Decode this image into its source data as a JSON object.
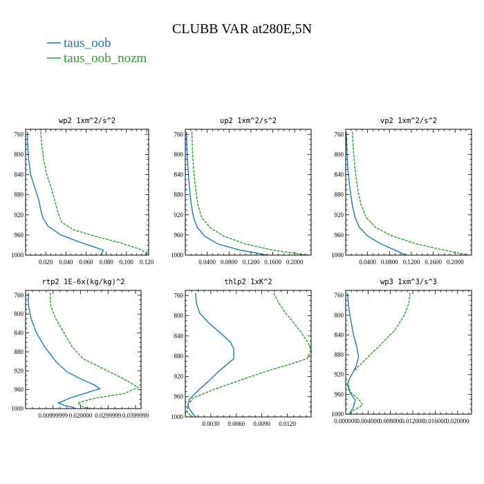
{
  "figure": {
    "title": "CLUBB VAR at280E,5N",
    "legend": [
      {
        "name": "taus_oob",
        "color": "#1f77b4",
        "dash": "none"
      },
      {
        "name": "taus_oob_nozm",
        "color": "#2ca02c",
        "dash": "4,1.5"
      }
    ]
  },
  "chart_data": [
    {
      "type": "line",
      "title": "wp2   1xm^2/s^2",
      "ylim": [
        1000,
        750
      ],
      "xlim": [
        0,
        0.122
      ],
      "yticks": [
        760,
        800,
        840,
        880,
        920,
        960,
        1000
      ],
      "xticks": [
        0.02,
        0.04,
        0.06,
        0.08,
        0.1,
        0.12
      ],
      "xticklabels": [
        "0.020",
        "0.040",
        "0.060",
        "0.080",
        "0.100",
        "0.120"
      ],
      "series": [
        {
          "name": "taus_oob",
          "points": [
            [
              0.002,
              755
            ],
            [
              0.002,
              780
            ],
            [
              0.003,
              810
            ],
            [
              0.005,
              840
            ],
            [
              0.009,
              865
            ],
            [
              0.013,
              890
            ],
            [
              0.015,
              910
            ],
            [
              0.017,
              925
            ],
            [
              0.022,
              942
            ],
            [
              0.035,
              960
            ],
            [
              0.055,
              975
            ],
            [
              0.077,
              990
            ],
            [
              0.075,
              1000
            ]
          ]
        },
        {
          "name": "taus_oob_nozm",
          "points": [
            [
              0.015,
              755
            ],
            [
              0.016,
              780
            ],
            [
              0.018,
              810
            ],
            [
              0.021,
              840
            ],
            [
              0.026,
              870
            ],
            [
              0.03,
              900
            ],
            [
              0.033,
              920
            ],
            [
              0.036,
              935
            ],
            [
              0.048,
              950
            ],
            [
              0.068,
              962
            ],
            [
              0.093,
              975
            ],
            [
              0.113,
              988
            ],
            [
              0.121,
              997
            ],
            [
              0.118,
              1000
            ]
          ]
        }
      ]
    },
    {
      "type": "line",
      "title": "up2   1xm^2/s^2",
      "ylim": [
        1000,
        750
      ],
      "xlim": [
        0,
        0.23
      ],
      "yticks": [
        760,
        800,
        840,
        880,
        920,
        960,
        1000
      ],
      "xticks": [
        0.04,
        0.08,
        0.12,
        0.16,
        0.2
      ],
      "xticklabels": [
        "0.0400",
        "0.0800",
        "0.1200",
        "0.1600",
        "0.2000"
      ],
      "series": [
        {
          "name": "taus_oob",
          "points": [
            [
              0.002,
              755
            ],
            [
              0.003,
              790
            ],
            [
              0.005,
              830
            ],
            [
              0.008,
              870
            ],
            [
              0.011,
              900
            ],
            [
              0.015,
              925
            ],
            [
              0.022,
              945
            ],
            [
              0.035,
              962
            ],
            [
              0.06,
              978
            ],
            [
              0.1,
              990
            ],
            [
              0.14,
              998
            ],
            [
              0.15,
              1000
            ]
          ]
        },
        {
          "name": "taus_oob_nozm",
          "points": [
            [
              0.012,
              755
            ],
            [
              0.013,
              790
            ],
            [
              0.015,
              830
            ],
            [
              0.019,
              870
            ],
            [
              0.023,
              900
            ],
            [
              0.03,
              925
            ],
            [
              0.045,
              945
            ],
            [
              0.07,
              962
            ],
            [
              0.11,
              978
            ],
            [
              0.16,
              990
            ],
            [
              0.21,
              998
            ],
            [
              0.225,
              1000
            ]
          ]
        }
      ]
    },
    {
      "type": "line",
      "title": "vp2   1xm^2/s^2",
      "ylim": [
        1000,
        750
      ],
      "xlim": [
        0,
        0.23
      ],
      "yticks": [
        760,
        800,
        840,
        880,
        920,
        960,
        1000
      ],
      "xticks": [
        0.04,
        0.08,
        0.12,
        0.16,
        0.2
      ],
      "xticklabels": [
        "0.0400",
        "0.0800",
        "0.1200",
        "0.1600",
        "0.2000"
      ],
      "series": [
        {
          "name": "taus_oob",
          "points": [
            [
              0.001,
              755
            ],
            [
              0.002,
              790
            ],
            [
              0.004,
              830
            ],
            [
              0.008,
              870
            ],
            [
              0.012,
              900
            ],
            [
              0.017,
              925
            ],
            [
              0.025,
              945
            ],
            [
              0.04,
              962
            ],
            [
              0.065,
              978
            ],
            [
              0.09,
              990
            ],
            [
              0.11,
              1000
            ]
          ]
        },
        {
          "name": "taus_oob_nozm",
          "points": [
            [
              0.012,
              755
            ],
            [
              0.014,
              790
            ],
            [
              0.017,
              830
            ],
            [
              0.022,
              870
            ],
            [
              0.028,
              900
            ],
            [
              0.037,
              925
            ],
            [
              0.055,
              945
            ],
            [
              0.085,
              962
            ],
            [
              0.13,
              978
            ],
            [
              0.18,
              990
            ],
            [
              0.225,
              1000
            ]
          ]
        }
      ]
    },
    {
      "type": "line",
      "title": "rtp2   1E-6x(kg/kg)^2",
      "ylim": [
        1000,
        750
      ],
      "xlim": [
        0,
        0.042
      ],
      "yticks": [
        760,
        800,
        840,
        880,
        920,
        960,
        1000
      ],
      "xticks": [
        0.01,
        0.02,
        0.03,
        0.04
      ],
      "xticklabels": [
        "0.00999999",
        "0.020000",
        "0.0299999",
        "0.0399999"
      ],
      "series": [
        {
          "name": "taus_oob",
          "points": [
            [
              0.001,
              755
            ],
            [
              0.001,
              780
            ],
            [
              0.002,
              810
            ],
            [
              0.004,
              840
            ],
            [
              0.007,
              870
            ],
            [
              0.011,
              900
            ],
            [
              0.015,
              922
            ],
            [
              0.02,
              937
            ],
            [
              0.025,
              950
            ],
            [
              0.027,
              958
            ],
            [
              0.023,
              965
            ],
            [
              0.016,
              978
            ],
            [
              0.012,
              988
            ],
            [
              0.014,
              993
            ],
            [
              0.017,
              997
            ],
            [
              0.018,
              1000
            ]
          ]
        },
        {
          "name": "taus_oob_nozm",
          "points": [
            [
              0.009,
              755
            ],
            [
              0.009,
              780
            ],
            [
              0.011,
              810
            ],
            [
              0.014,
              840
            ],
            [
              0.017,
              870
            ],
            [
              0.021,
              895
            ],
            [
              0.027,
              912
            ],
            [
              0.035,
              935
            ],
            [
              0.041,
              955
            ],
            [
              0.036,
              968
            ],
            [
              0.025,
              978
            ],
            [
              0.019,
              988
            ],
            [
              0.021,
              997
            ],
            [
              0.024,
              1000
            ]
          ]
        }
      ]
    },
    {
      "type": "line",
      "title": "thlp2   1xK^2",
      "ylim": [
        1000,
        750
      ],
      "xlim": [
        0,
        0.0148
      ],
      "yticks": [
        760,
        800,
        840,
        880,
        920,
        960,
        1000
      ],
      "xticks": [
        0.003,
        0.006,
        0.009,
        0.012
      ],
      "xticklabels": [
        "0.0030",
        "0.0060",
        "0.0090",
        "0.0120"
      ],
      "series": [
        {
          "name": "taus_oob",
          "points": [
            [
              0.0012,
              755
            ],
            [
              0.0013,
              775
            ],
            [
              0.0017,
              795
            ],
            [
              0.0028,
              815
            ],
            [
              0.0042,
              835
            ],
            [
              0.0053,
              852
            ],
            [
              0.0057,
              865
            ],
            [
              0.0057,
              885
            ],
            [
              0.0048,
              898
            ],
            [
              0.0038,
              912
            ],
            [
              0.0027,
              930
            ],
            [
              0.0015,
              948
            ],
            [
              0.0005,
              965
            ],
            [
              0.0003,
              978
            ],
            [
              0.0007,
              990
            ],
            [
              0.0012,
              1000
            ]
          ]
        },
        {
          "name": "taus_oob_nozm",
          "points": [
            [
              0.0104,
              755
            ],
            [
              0.011,
              775
            ],
            [
              0.0118,
              795
            ],
            [
              0.0128,
              815
            ],
            [
              0.0137,
              835
            ],
            [
              0.0145,
              855
            ],
            [
              0.0148,
              870
            ],
            [
              0.0143,
              885
            ],
            [
              0.0125,
              895
            ],
            [
              0.0095,
              910
            ],
            [
              0.006,
              930
            ],
            [
              0.003,
              948
            ],
            [
              0.001,
              962
            ],
            [
              0.0003,
              975
            ],
            [
              0.0002,
              990
            ],
            [
              0.0008,
              1000
            ]
          ]
        }
      ]
    },
    {
      "type": "line",
      "title": "wp3   1xm^3/s^3",
      "ylim": [
        1000,
        750
      ],
      "xlim": [
        0,
        0.0225
      ],
      "yticks": [
        760,
        800,
        840,
        880,
        920,
        960,
        1000
      ],
      "xticks": [
        0,
        0.004,
        0.008,
        0.012,
        0.016,
        0.02
      ],
      "xticklabels": [
        "0.000000",
        "0.004000",
        "0.008000",
        "0.012000",
        "0.016000",
        "0.020000"
      ],
      "series": [
        {
          "name": "taus_oob",
          "points": [
            [
              0.0003,
              755
            ],
            [
              0.0005,
              780
            ],
            [
              0.0009,
              810
            ],
            [
              0.0014,
              840
            ],
            [
              0.002,
              865
            ],
            [
              0.0023,
              885
            ],
            [
              0.0018,
              905
            ],
            [
              0.0008,
              925
            ],
            [
              0.0003,
              940
            ],
            [
              0.0007,
              955
            ],
            [
              0.0017,
              972
            ],
            [
              0.0013,
              988
            ],
            [
              0.0006,
              1000
            ]
          ]
        },
        {
          "name": "taus_oob_nozm",
          "points": [
            [
              0.0115,
              755
            ],
            [
              0.0113,
              775
            ],
            [
              0.0105,
              800
            ],
            [
              0.0088,
              830
            ],
            [
              0.0062,
              860
            ],
            [
              0.0035,
              890
            ],
            [
              0.0013,
              915
            ],
            [
              0.0004,
              935
            ],
            [
              0.0008,
              955
            ],
            [
              0.0025,
              972
            ],
            [
              0.003,
              982
            ],
            [
              0.0015,
              992
            ],
            [
              0.0005,
              1000
            ]
          ]
        }
      ]
    }
  ]
}
